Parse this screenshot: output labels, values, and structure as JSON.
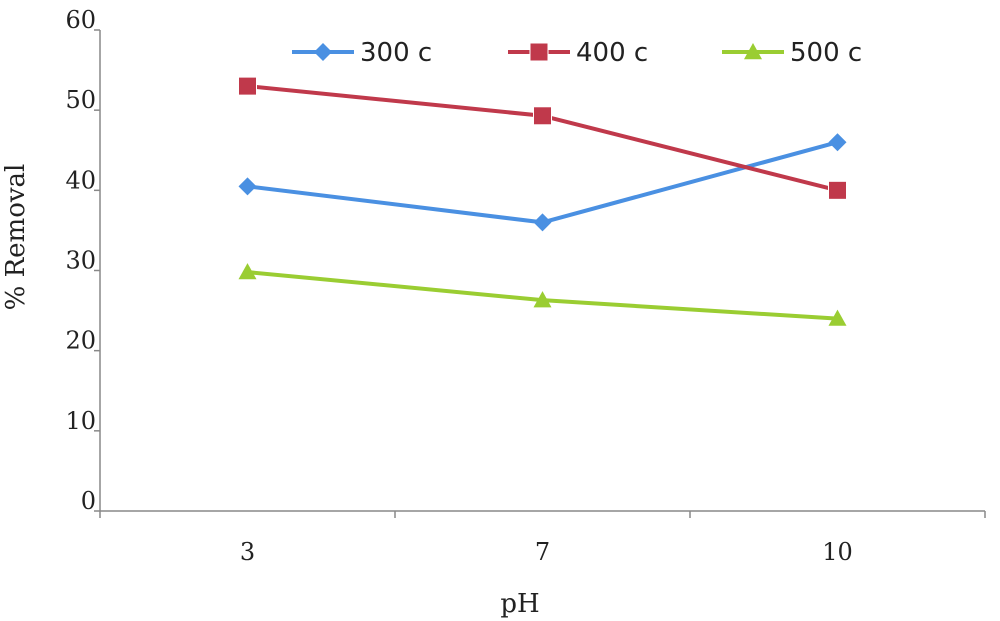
{
  "chart_data": {
    "type": "line",
    "title": "",
    "xlabel": "pH",
    "ylabel": "% Removal",
    "categories": [
      "3",
      "7",
      "10"
    ],
    "ylim": [
      0,
      60
    ],
    "yticks": [
      "0",
      "10",
      "20",
      "30",
      "40",
      "50",
      "60"
    ],
    "grid": false,
    "legend_position": "top",
    "series": [
      {
        "name": "300 c",
        "values": [
          40.5,
          36,
          46
        ],
        "color": "#4a90e2",
        "marker": "diamond"
      },
      {
        "name": "400 c",
        "values": [
          53,
          49.3,
          40
        ],
        "color": "#c0394b",
        "marker": "square"
      },
      {
        "name": "500 c",
        "values": [
          29.8,
          26.3,
          24
        ],
        "color": "#9acd32",
        "marker": "triangle"
      }
    ]
  }
}
